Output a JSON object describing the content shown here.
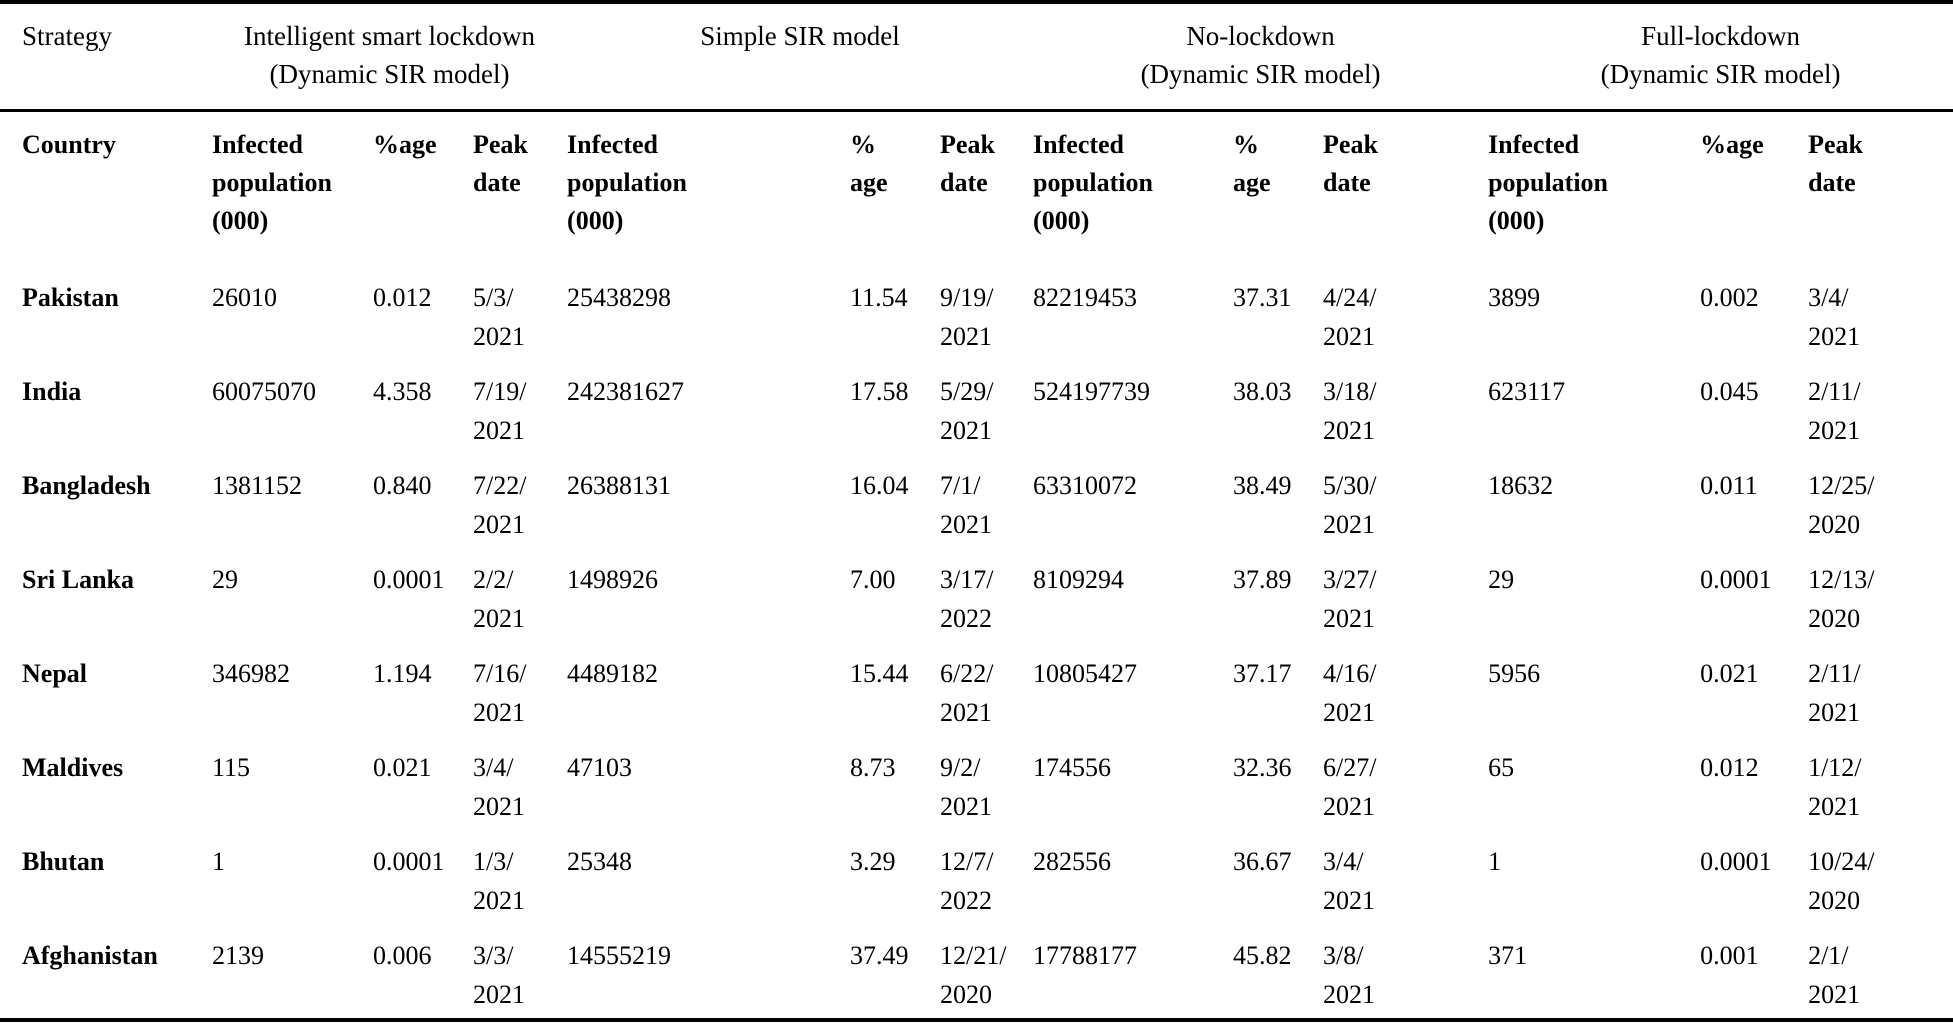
{
  "table": {
    "strategy_column_label": "Strategy",
    "group_headers": [
      "Intelligent smart lockdown\n(Dynamic SIR model)",
      "Simple SIR model",
      "No-lockdown\n(Dynamic SIR model)",
      "Full-lockdown\n(Dynamic SIR model)"
    ],
    "column_headers": [
      "Country",
      "Infected\npopulation\n(000)",
      "%age",
      "Peak\ndate",
      "Infected\npopulation\n(000)",
      "%\nage",
      "Peak\ndate",
      "Infected\npopulation\n(000)",
      "%\nage",
      "Peak\ndate",
      "Infected\npopulation\n(000)",
      "%age",
      "Peak\ndate"
    ],
    "rows": [
      {
        "country": "Pakistan",
        "cells": [
          "26010",
          "0.012",
          "5/3/\n2021",
          "25438298",
          "11.54",
          "9/19/\n2021",
          "82219453",
          "37.31",
          "4/24/\n2021",
          "3899",
          "0.002",
          "3/4/\n2021"
        ]
      },
      {
        "country": "India",
        "cells": [
          "60075070",
          "4.358",
          "7/19/\n2021",
          "242381627",
          "17.58",
          "5/29/\n2021",
          "524197739",
          "38.03",
          "3/18/\n2021",
          "623117",
          "0.045",
          "2/11/\n2021"
        ]
      },
      {
        "country": "Bangladesh",
        "cells": [
          "1381152",
          "0.840",
          "7/22/\n2021",
          "26388131",
          "16.04",
          "7/1/\n2021",
          "63310072",
          "38.49",
          "5/30/\n2021",
          "18632",
          "0.011",
          "12/25/\n2020"
        ]
      },
      {
        "country": "Sri Lanka",
        "cells": [
          "29",
          "0.0001",
          "2/2/\n2021",
          "1498926",
          "7.00",
          "3/17/\n2022",
          "8109294",
          "37.89",
          "3/27/\n2021",
          "29",
          "0.0001",
          "12/13/\n2020"
        ]
      },
      {
        "country": "Nepal",
        "cells": [
          "346982",
          "1.194",
          "7/16/\n2021",
          "4489182",
          "15.44",
          "6/22/\n2021",
          "10805427",
          "37.17",
          "4/16/\n2021",
          "5956",
          "0.021",
          "2/11/\n2021"
        ]
      },
      {
        "country": "Maldives",
        "cells": [
          "115",
          "0.021",
          "3/4/\n2021",
          "47103",
          "8.73",
          "9/2/\n2021",
          "174556",
          "32.36",
          "6/27/\n2021",
          "65",
          "0.012",
          "1/12/\n2021"
        ]
      },
      {
        "country": "Bhutan",
        "cells": [
          "1",
          "0.0001",
          "1/3/\n2021",
          "25348",
          "3.29",
          "12/7/\n2022",
          "282556",
          "36.67",
          "3/4/\n2021",
          "1",
          "0.0001",
          "10/24/\n2020"
        ]
      },
      {
        "country": "Afghanistan",
        "cells": [
          "2139",
          "0.006",
          "3/3/\n2021",
          "14555219",
          "37.49",
          "12/21/\n2020",
          "17788177",
          "45.82",
          "3/8/\n2021",
          "371",
          "0.001",
          "2/1/\n2021"
        ]
      }
    ]
  },
  "colors": {
    "text": "#000000",
    "background": "#ffffff",
    "rule": "#000000"
  }
}
